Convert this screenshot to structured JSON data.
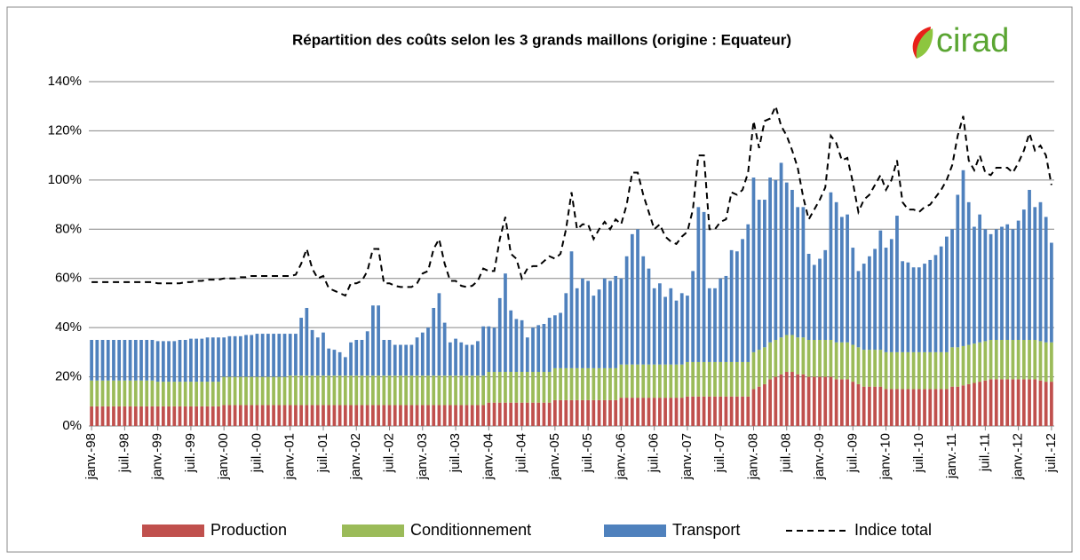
{
  "chart_data": {
    "type": "bar",
    "title": "Répartition des coûts selon les 3 grands maillons (origine : Equateur)",
    "logo": "cirad",
    "categories": [
      "janv.-98",
      null,
      null,
      null,
      null,
      null,
      "juil.-98",
      null,
      null,
      null,
      null,
      null,
      "janv.-99",
      null,
      null,
      null,
      null,
      null,
      "juil.-99",
      null,
      null,
      null,
      null,
      null,
      "janv.-00",
      null,
      null,
      null,
      null,
      null,
      "juil.-00",
      null,
      null,
      null,
      null,
      null,
      "janv.-01",
      null,
      null,
      null,
      null,
      null,
      "juil.-01",
      null,
      null,
      null,
      null,
      null,
      "janv.-02",
      null,
      null,
      null,
      null,
      null,
      "juil.-02",
      null,
      null,
      null,
      null,
      null,
      "janv.-03",
      null,
      null,
      null,
      null,
      null,
      "juil.-03",
      null,
      null,
      null,
      null,
      null,
      "janv.-04",
      null,
      null,
      null,
      null,
      null,
      "juil.-04",
      null,
      null,
      null,
      null,
      null,
      "janv.-05",
      null,
      null,
      null,
      null,
      null,
      "juil.-05",
      null,
      null,
      null,
      null,
      null,
      "janv.-06",
      null,
      null,
      null,
      null,
      null,
      "juil.-06",
      null,
      null,
      null,
      null,
      null,
      "janv.-07",
      null,
      null,
      null,
      null,
      null,
      "juil.-07",
      null,
      null,
      null,
      null,
      null,
      "janv.-08",
      null,
      null,
      null,
      null,
      null,
      "juil.-08",
      null,
      null,
      null,
      null,
      null,
      "janv.-09",
      null,
      null,
      null,
      null,
      null,
      "juil.-09",
      null,
      null,
      null,
      null,
      null,
      "janv.-10",
      null,
      null,
      null,
      null,
      null,
      "juil.-10",
      null,
      null,
      null,
      null,
      null,
      "janv.-11",
      null,
      null,
      null,
      null,
      null,
      "juil.-11",
      null,
      null,
      null,
      null,
      null,
      "janv.-12",
      null,
      null,
      null,
      null,
      null,
      "juil.-12"
    ],
    "series": [
      {
        "name": "Production",
        "color": "#c0504d",
        "stack": true,
        "values": [
          8,
          8,
          8,
          8,
          8,
          8,
          8,
          8,
          8,
          8,
          8,
          8,
          8,
          8,
          8,
          8,
          8,
          8,
          8,
          8,
          8,
          8,
          8,
          8,
          8.5,
          8.5,
          8.5,
          8.5,
          8.5,
          8.5,
          8.5,
          8.5,
          8.5,
          8.5,
          8.5,
          8.5,
          8.5,
          8.5,
          8.5,
          8.5,
          8.5,
          8.5,
          8.5,
          8.5,
          8.5,
          8.5,
          8.5,
          8.5,
          8.5,
          8.5,
          8.5,
          8.5,
          8.5,
          8.5,
          8.5,
          8.5,
          8.5,
          8.5,
          8.5,
          8.5,
          8.5,
          8.5,
          8.5,
          8.5,
          8.5,
          8.5,
          8.5,
          8.5,
          8.5,
          8.5,
          8.5,
          8.5,
          9.5,
          9.5,
          9.5,
          9.5,
          9.5,
          9.5,
          9.5,
          9.5,
          9.5,
          9.5,
          9.5,
          9.5,
          10.5,
          10.5,
          10.5,
          10.5,
          10.5,
          10.5,
          10.5,
          10.5,
          10.5,
          10.5,
          10.5,
          10.5,
          11.5,
          11.5,
          11.5,
          11.5,
          11.5,
          11.5,
          11.5,
          11.5,
          11.5,
          11.5,
          11.5,
          11.5,
          12,
          12,
          12,
          12,
          12,
          12,
          12,
          12,
          12,
          12,
          12,
          12,
          15,
          16,
          17,
          19,
          20,
          21,
          22,
          22,
          21,
          21,
          20,
          20,
          20,
          20,
          20,
          19,
          19,
          19,
          18,
          17,
          16,
          16,
          16,
          16,
          15,
          15,
          15,
          15,
          15,
          15,
          15,
          15,
          15,
          15,
          15,
          15,
          16,
          16,
          16.5,
          17,
          17.5,
          18,
          18.5,
          19,
          19,
          19,
          19,
          19,
          19,
          19,
          19,
          19,
          18.5,
          18,
          18
        ]
      },
      {
        "name": "Conditionnement",
        "color": "#9bbb59",
        "stack": true,
        "values": [
          10.5,
          10.5,
          10.5,
          10.5,
          10.5,
          10.5,
          10.5,
          10.5,
          10.5,
          10.5,
          10.5,
          10.5,
          10,
          10,
          10,
          10,
          10,
          10,
          10,
          10,
          10,
          10,
          10,
          10,
          11.5,
          11.5,
          11.5,
          11.5,
          11.5,
          11.5,
          11.5,
          11.5,
          11.5,
          11.5,
          11.5,
          11.5,
          12,
          12,
          12,
          12,
          12,
          12,
          12,
          12,
          12,
          12,
          12,
          12,
          12,
          12,
          12,
          12,
          12,
          12,
          12,
          12,
          12,
          12,
          12,
          12,
          12,
          12,
          12,
          12,
          12,
          12,
          12,
          12,
          12,
          12,
          12,
          12,
          12.5,
          12.5,
          12.5,
          12.5,
          12.5,
          12.5,
          12.5,
          12.5,
          12.5,
          12.5,
          12.5,
          12.5,
          13,
          13,
          13,
          13,
          13,
          13,
          13,
          13,
          13,
          13,
          13,
          13,
          13.5,
          13.5,
          13.5,
          13.5,
          13.5,
          13.5,
          13.5,
          13.5,
          13.5,
          13.5,
          13.5,
          13.5,
          14,
          14,
          14,
          14,
          14,
          14,
          14,
          14,
          14,
          14,
          14,
          14,
          15,
          15,
          15,
          15,
          15,
          15,
          15,
          15,
          15,
          15,
          15,
          15,
          15,
          15,
          15,
          15,
          15,
          15,
          15,
          15,
          15,
          15,
          15,
          15,
          15,
          15,
          15,
          15,
          15,
          15,
          15,
          15,
          15,
          15,
          15,
          15,
          16,
          16,
          16,
          16,
          16,
          16,
          16,
          16,
          16,
          16,
          16,
          16,
          16,
          16,
          16,
          16,
          16,
          16,
          16
        ]
      },
      {
        "name": "Transport",
        "color": "#4f81bd",
        "stack": true,
        "values": [
          16.5,
          16.5,
          16.5,
          16.5,
          16.5,
          16.5,
          16.5,
          16.5,
          16.5,
          16.5,
          16.5,
          16.5,
          16.5,
          16.5,
          16.5,
          16.5,
          17,
          17,
          17.5,
          17.5,
          17.5,
          18,
          18,
          18,
          16,
          16.5,
          16.5,
          16.5,
          17,
          17,
          17.5,
          17.5,
          17.5,
          17.5,
          17.5,
          17.5,
          17,
          17,
          23.5,
          27.5,
          18.5,
          15.5,
          17.5,
          11,
          10.5,
          9.5,
          7.5,
          13.5,
          14.5,
          14.5,
          18,
          28.5,
          28.5,
          14.5,
          14.5,
          12.5,
          12.5,
          12.5,
          12.5,
          15.5,
          17.5,
          19.5,
          27.5,
          33.5,
          21.5,
          13.5,
          15,
          13.5,
          12.5,
          12.5,
          14,
          20,
          18.5,
          18,
          30,
          40,
          25,
          21.5,
          21,
          14,
          18,
          19,
          19.5,
          22,
          21.5,
          22.5,
          30.5,
          47.5,
          32.5,
          36.5,
          35.5,
          29.5,
          32,
          36.5,
          35.5,
          37.5,
          35,
          44,
          53,
          55,
          44,
          39,
          31,
          33,
          27.5,
          31,
          26,
          29,
          27,
          37,
          63,
          61,
          30,
          30,
          34,
          35,
          45.5,
          45,
          50,
          56,
          71,
          61,
          60,
          67,
          65,
          71,
          62,
          59,
          53,
          53,
          35,
          30.5,
          33,
          36.5,
          60,
          57,
          51,
          52,
          39.5,
          31,
          35,
          38,
          41,
          48.5,
          42.5,
          46,
          55.5,
          37,
          36.5,
          34.5,
          34.5,
          36,
          37.5,
          39.5,
          43,
          47,
          48,
          62,
          71.5,
          58,
          47.5,
          52,
          45.5,
          43,
          45,
          46,
          47,
          45,
          48.5,
          53,
          61,
          54,
          56.5,
          51,
          40.5
        ]
      },
      {
        "name": "Indice total",
        "color": "#000000",
        "type": "line",
        "dash": true,
        "values": [
          58.5,
          58.5,
          58.5,
          58.5,
          58.5,
          58.5,
          58.5,
          58.5,
          58.5,
          58.5,
          58.5,
          58.5,
          58,
          58,
          58,
          58,
          58,
          58.5,
          58.5,
          59,
          59,
          59.5,
          59.5,
          59.5,
          60,
          60,
          60,
          60.5,
          60.5,
          61,
          61,
          61,
          61,
          61,
          61,
          61,
          61,
          61.5,
          66,
          72,
          64,
          60,
          61,
          56,
          55,
          54,
          53,
          58,
          58,
          59,
          63,
          72,
          72,
          58,
          58,
          57,
          56.5,
          56.5,
          56.5,
          58,
          62,
          63,
          72,
          76,
          66,
          59,
          59,
          57,
          56.5,
          57,
          59,
          64,
          63,
          63,
          76,
          85,
          70,
          68,
          60,
          64,
          65,
          65,
          67,
          69,
          68,
          70,
          80,
          95,
          80,
          82,
          82,
          76,
          80,
          83,
          80,
          84,
          82,
          90,
          103,
          103,
          94,
          87,
          80,
          82,
          77,
          75,
          74,
          77,
          79,
          88,
          110,
          110,
          80,
          80,
          83,
          84,
          95,
          94,
          96,
          103,
          124,
          113,
          124,
          125,
          130,
          122,
          118,
          112,
          105,
          93,
          84,
          88,
          92,
          97,
          118,
          115,
          108,
          109,
          99,
          87,
          92,
          94,
          98,
          102,
          96,
          100,
          108,
          91,
          88,
          88,
          87,
          89,
          90,
          93,
          96,
          100,
          106,
          118,
          126,
          108,
          104,
          110,
          103,
          102,
          105,
          105,
          105,
          103,
          107,
          112,
          119,
          112,
          114,
          110,
          98
        ]
      }
    ],
    "ylim": [
      0,
      140
    ],
    "yticks": [
      {
        "value": 0,
        "label": "0%"
      },
      {
        "value": 20,
        "label": "20%"
      },
      {
        "value": 40,
        "label": "40%"
      },
      {
        "value": 60,
        "label": "60%"
      },
      {
        "value": 80,
        "label": "80%"
      },
      {
        "value": 100,
        "label": "100%"
      },
      {
        "value": 120,
        "label": "120%"
      },
      {
        "value": 140,
        "label": "140%"
      }
    ],
    "grid": true,
    "legend": "bottom"
  }
}
